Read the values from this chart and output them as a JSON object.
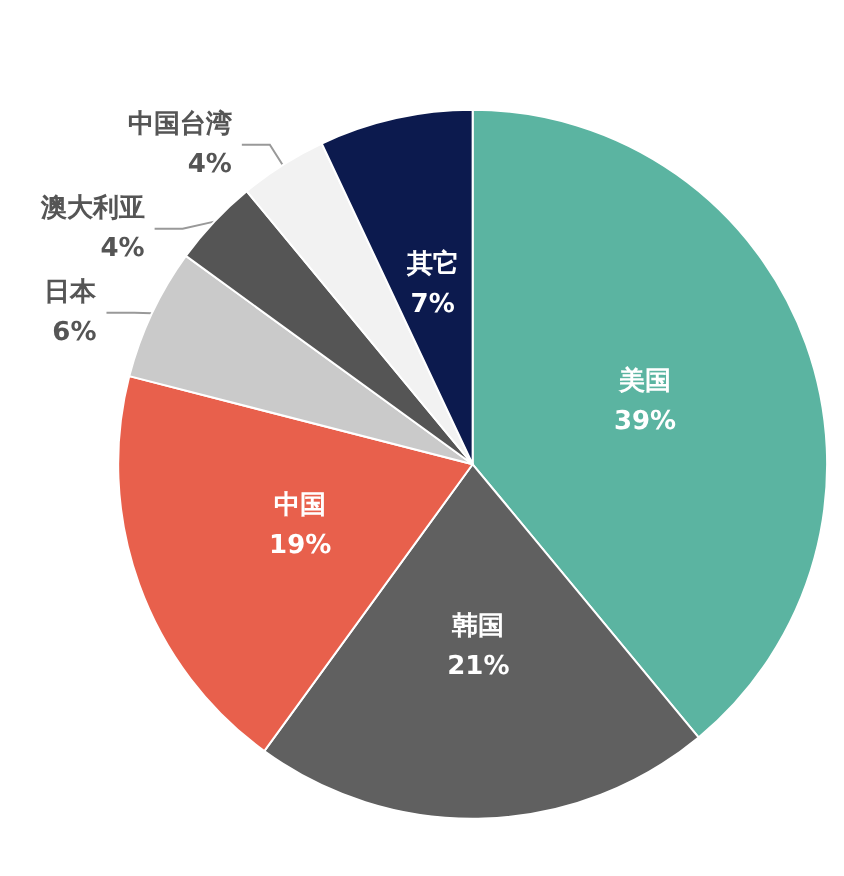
{
  "chart_data": {
    "type": "pie",
    "categories": [
      "美国",
      "韩国",
      "中国",
      "日本",
      "澳大利亚",
      "中国台湾",
      "其它"
    ],
    "values": [
      39,
      21,
      19,
      6,
      4,
      4,
      7
    ],
    "colors": [
      "#5bb4a1",
      "#606060",
      "#e8604c",
      "#cacaca",
      "#555555",
      "#f2f2f2",
      "#0c1a4e"
    ],
    "value_labels": [
      "39%",
      "21%",
      "19%",
      "6%",
      "4%",
      "4%",
      "7%"
    ]
  }
}
